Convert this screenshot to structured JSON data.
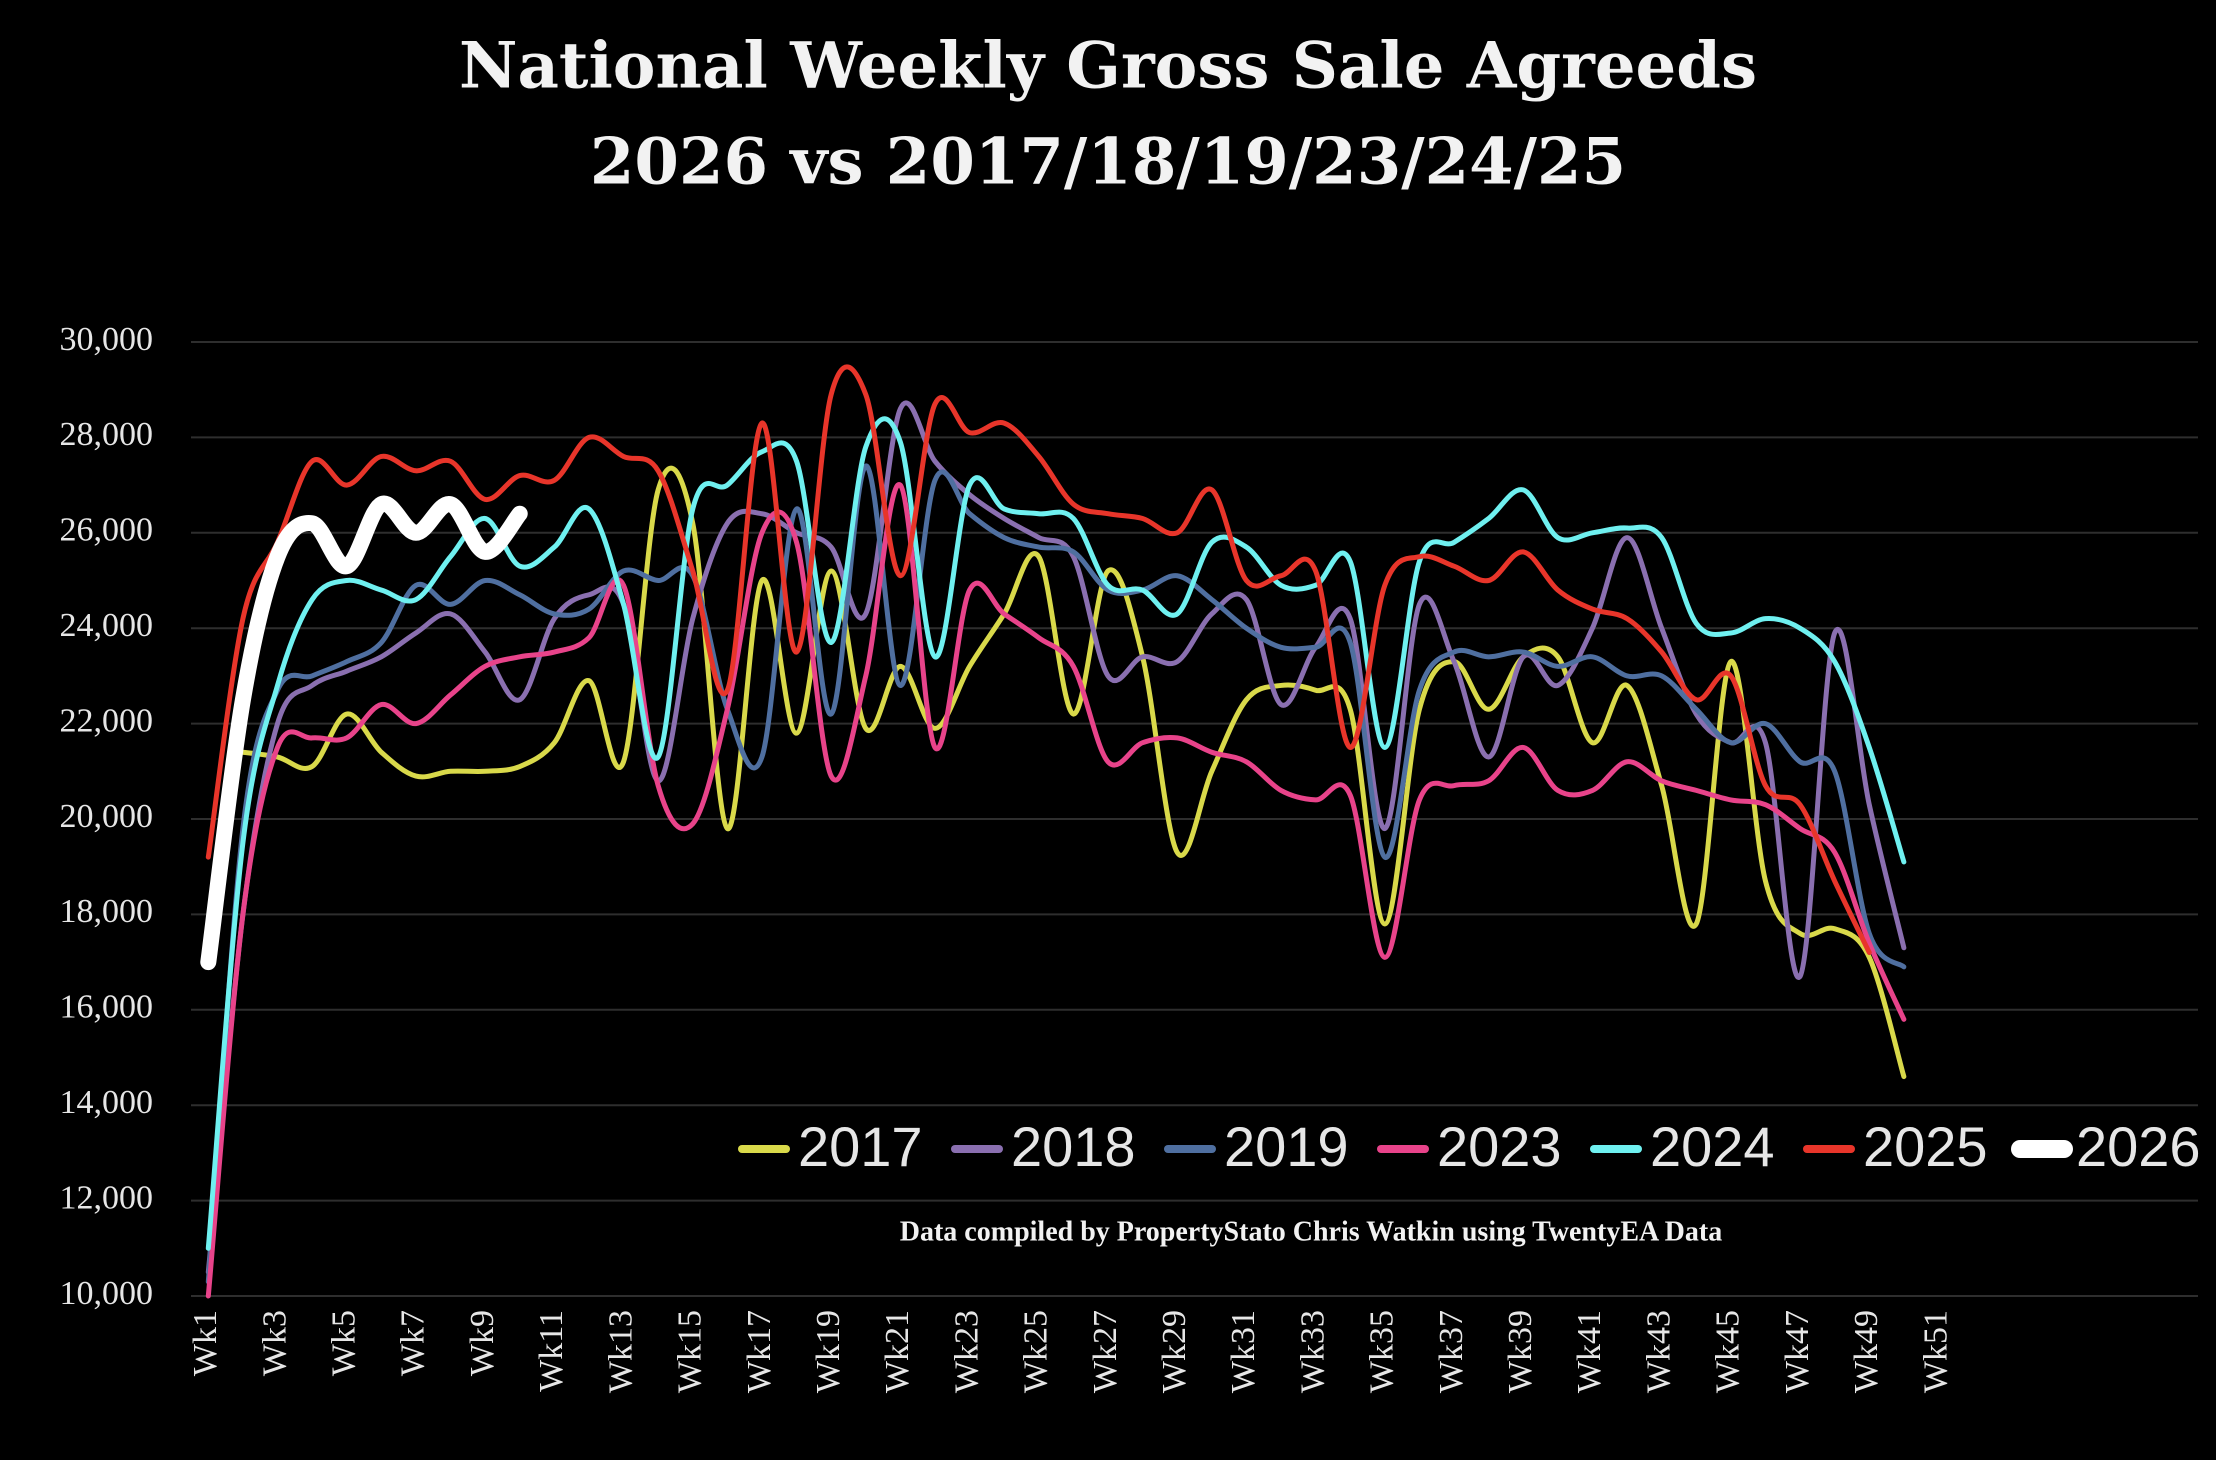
{
  "chart_data": {
    "type": "line",
    "title": "National Weekly Gross Sale Agreeds",
    "subtitle": "2026 vs 2017/18/19/23/24/25",
    "note": "Data compiled by PropertyStato Chris Watkin using TwentyEA Data",
    "categories": [
      "Wk1",
      null,
      "Wk3",
      null,
      "Wk5",
      null,
      "Wk7",
      null,
      "Wk9",
      null,
      "Wk11",
      null,
      "Wk13",
      null,
      "Wk15",
      null,
      "Wk17",
      null,
      "Wk19",
      null,
      "Wk21",
      null,
      "Wk23",
      null,
      "Wk25",
      null,
      "Wk27",
      null,
      "Wk29",
      null,
      "Wk31",
      null,
      "Wk33",
      null,
      "Wk35",
      null,
      "Wk37",
      null,
      "Wk39",
      null,
      "Wk41",
      null,
      "Wk43",
      null,
      "Wk45",
      null,
      "Wk47",
      null,
      "Wk49",
      null,
      "Wk51",
      null,
      null,
      null,
      null,
      null,
      null,
      null
    ],
    "ylim": [
      10000,
      30000
    ],
    "yticks": [
      {
        "value": 10000,
        "label": "10,000"
      },
      {
        "value": 12000,
        "label": "12,000"
      },
      {
        "value": 14000,
        "label": "14,000"
      },
      {
        "value": 16000,
        "label": "16,000"
      },
      {
        "value": 18000,
        "label": "18,000"
      },
      {
        "value": 20000,
        "label": "20,000"
      },
      {
        "value": 22000,
        "label": "22,000"
      },
      {
        "value": 24000,
        "label": "24,000"
      },
      {
        "value": 26000,
        "label": "26,000"
      },
      {
        "value": 28000,
        "label": "28,000"
      },
      {
        "value": 30000,
        "label": "30,000"
      }
    ],
    "grid": true,
    "smooth": true,
    "legend": "lower right",
    "series": [
      {
        "name": "2017",
        "color": "#d9d94a",
        "width": 5,
        "values": [
          null,
          21400,
          21300,
          21100,
          22200,
          21400,
          20900,
          21000,
          21000,
          21100,
          21600,
          22900,
          21200,
          26900,
          26200,
          19800,
          25000,
          21800,
          25200,
          21900,
          23200,
          21900,
          23200,
          24300,
          25500,
          22200,
          25200,
          23400,
          19300,
          21000,
          22500,
          22800,
          22700,
          22300,
          17800,
          22300,
          23300,
          22300,
          23400,
          23400,
          21600,
          22800,
          20700,
          17800,
          23300,
          18700,
          17600,
          17700,
          17100,
          14600,
          null,
          null,
          null,
          null,
          null,
          null,
          null,
          null
        ]
      },
      {
        "name": "2018",
        "color": "#8a6fb0",
        "width": 5,
        "values": [
          10500,
          18000,
          22000,
          22800,
          23100,
          23400,
          23900,
          24300,
          23500,
          22500,
          24200,
          24700,
          24500,
          20800,
          24200,
          26200,
          26400,
          26000,
          25700,
          24300,
          28600,
          27500,
          26800,
          26300,
          25900,
          25500,
          23000,
          23400,
          23300,
          24300,
          24600,
          22400,
          23600,
          24200,
          19800,
          24500,
          23300,
          21300,
          23400,
          22800,
          24000,
          25900,
          24000,
          22200,
          21600,
          21600,
          16700,
          23900,
          20300,
          17300,
          null,
          null,
          null,
          null,
          null,
          null,
          null,
          null
        ]
      },
      {
        "name": "2019",
        "color": "#4f6fa0",
        "width": 5,
        "values": [
          10300,
          19800,
          22700,
          23000,
          23300,
          23700,
          24900,
          24500,
          25000,
          24700,
          24300,
          24400,
          25200,
          25000,
          25100,
          22300,
          21300,
          26500,
          22200,
          27400,
          22800,
          27100,
          26400,
          25900,
          25700,
          25600,
          24800,
          24800,
          25100,
          24600,
          24000,
          23600,
          23600,
          23700,
          19200,
          22700,
          23500,
          23400,
          23500,
          23200,
          23400,
          23000,
          23000,
          22300,
          21600,
          22000,
          21200,
          21000,
          17600,
          16900,
          null,
          null,
          null,
          null,
          null,
          null,
          null,
          null
        ]
      },
      {
        "name": "2023",
        "color": "#e8438a",
        "width": 5,
        "values": [
          10000,
          18000,
          21500,
          21700,
          21700,
          22400,
          22000,
          22600,
          23200,
          23400,
          23500,
          23800,
          24900,
          20700,
          19900,
          22300,
          26000,
          25800,
          20900,
          23000,
          27000,
          21500,
          24800,
          24300,
          23800,
          23200,
          21200,
          21600,
          21700,
          21400,
          21200,
          20600,
          20400,
          20500,
          17100,
          20400,
          20700,
          20800,
          21500,
          20600,
          20600,
          21200,
          20800,
          20600,
          20400,
          20300,
          19800,
          19300,
          17400,
          15800,
          null,
          null,
          null,
          null,
          null,
          null,
          null,
          null
        ]
      },
      {
        "name": "2024",
        "color": "#6ff0f0",
        "width": 5,
        "values": [
          11000,
          19500,
          22800,
          24600,
          25000,
          24800,
          24600,
          25500,
          26300,
          25300,
          25700,
          26500,
          24500,
          21300,
          26500,
          27000,
          27700,
          27500,
          23700,
          27800,
          27900,
          23400,
          27000,
          26500,
          26400,
          26300,
          24900,
          24800,
          24300,
          25800,
          25700,
          24900,
          24900,
          25400,
          21500,
          25400,
          25800,
          26300,
          26900,
          25900,
          26000,
          26100,
          25900,
          24100,
          23900,
          24200,
          24000,
          23300,
          21500,
          19100,
          null,
          null,
          null,
          null,
          null,
          null,
          null,
          null
        ]
      },
      {
        "name": "2025",
        "color": "#e8352a",
        "width": 5,
        "values": [
          19200,
          24200,
          25800,
          27500,
          27000,
          27600,
          27300,
          27500,
          26700,
          27200,
          27100,
          28000,
          27600,
          27300,
          25200,
          22700,
          28300,
          23500,
          28900,
          28900,
          25100,
          28700,
          28100,
          28300,
          27600,
          26600,
          26400,
          26300,
          26000,
          26900,
          25000,
          25100,
          25200,
          21500,
          24900,
          25500,
          25300,
          25000,
          25600,
          24800,
          24400,
          24200,
          23500,
          22500,
          23000,
          20700,
          20300,
          18700,
          17200,
          null,
          null,
          null,
          null,
          null,
          null,
          null,
          null,
          null
        ]
      },
      {
        "name": "2026",
        "color": "#ffffff",
        "width": 16,
        "values": [
          17000,
          22500,
          25500,
          26200,
          25300,
          26600,
          26000,
          26600,
          25600,
          26400,
          null,
          null,
          null,
          null,
          null,
          null,
          null,
          null,
          null,
          null,
          null,
          null,
          null,
          null,
          null,
          null,
          null,
          null,
          null,
          null,
          null,
          null,
          null,
          null,
          null,
          null,
          null,
          null,
          null,
          null,
          null,
          null,
          null,
          null,
          null,
          null,
          null,
          null,
          null,
          null,
          null,
          null,
          null,
          null,
          null,
          null,
          null,
          null
        ]
      }
    ]
  }
}
